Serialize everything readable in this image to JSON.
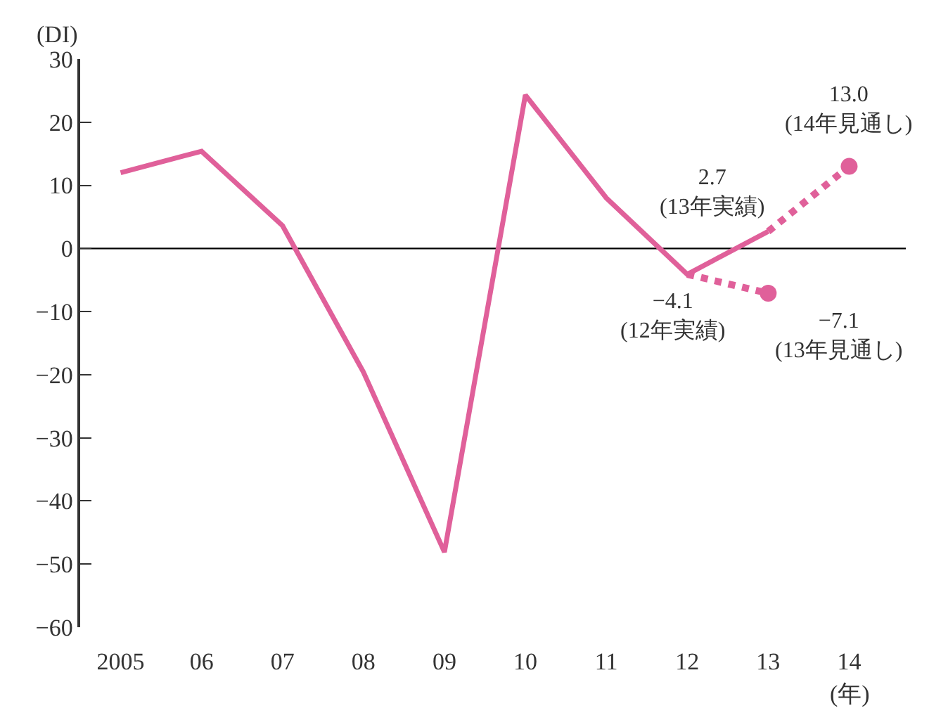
{
  "chart_data": {
    "type": "line",
    "xlabel": "(年)",
    "ylabel": "(DI)",
    "categories": [
      "2005",
      "06",
      "07",
      "08",
      "09",
      "10",
      "11",
      "12",
      "13",
      "14"
    ],
    "series": [
      {
        "color": "#e0609a",
        "values": [
          12.0,
          15.4,
          3.6,
          -19.6,
          -48.1,
          24.3,
          8.0,
          -4.1,
          2.7,
          null
        ],
        "line_style": "solid",
        "marker": "none"
      },
      {
        "color": "#e0609a",
        "values": [
          null,
          null,
          null,
          null,
          null,
          null,
          null,
          -4.1,
          -7.1,
          null
        ],
        "line_style": "dotted",
        "marker": "none"
      },
      {
        "color": "#e0609a",
        "values": [
          null,
          null,
          null,
          null,
          null,
          null,
          null,
          null,
          2.7,
          13.0
        ],
        "line_style": "dotted",
        "marker": "none"
      },
      {
        "type": "scatter",
        "color": "#e0609a",
        "values": [
          null,
          null,
          null,
          null,
          null,
          null,
          null,
          null,
          -7.1,
          13.0
        ],
        "marker": "circle"
      }
    ],
    "ylim": [
      -60,
      30
    ],
    "yticks": [
      {
        "value": -60,
        "label": "−60"
      },
      {
        "value": -50,
        "label": "−50"
      },
      {
        "value": -40,
        "label": "−40"
      },
      {
        "value": -30,
        "label": "−30"
      },
      {
        "value": -20,
        "label": "−20"
      },
      {
        "value": -10,
        "label": "−10"
      },
      0,
      10,
      20,
      30
    ],
    "ref_lines": [
      {
        "axis": "y",
        "value": 0,
        "color": "#000000"
      }
    ],
    "annotations": [
      {
        "text": "2.7\n(13年実績)",
        "x": "13",
        "y": 2.7
      },
      {
        "text": "−4.1\n(12年実績)",
        "x": "12",
        "y": -4.1
      },
      {
        "text": "−7.1\n(13年見通し)",
        "x": "13",
        "y": -7.1
      },
      {
        "text": "13.0\n(14年見通し)",
        "x": "14",
        "y": 13.0
      }
    ]
  }
}
